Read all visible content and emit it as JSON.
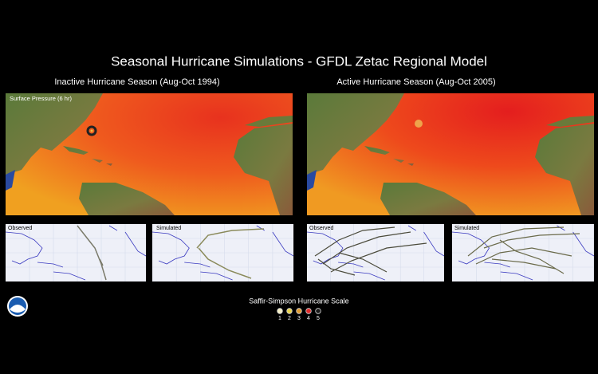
{
  "header": {
    "title": "Seasonal Hurricane Simulations - GFDL Zetac Regional Model"
  },
  "panels": [
    {
      "title": "Inactive Hurricane Season (Aug-Oct 1994)",
      "map_label": "Surface Pressure (6 hr)",
      "observed": "Observed",
      "simulated": "Simulated"
    },
    {
      "title": "Active Hurricane Season (Aug-Oct 2005)",
      "observed": "Observed",
      "simulated": "Simulated"
    }
  ],
  "scale": {
    "title": "Saffir-Simpson Hurricane Scale",
    "levels": [
      {
        "label": "1",
        "color": "#f4eec4"
      },
      {
        "label": "2",
        "color": "#e8d24a"
      },
      {
        "label": "3",
        "color": "#e09a30"
      },
      {
        "label": "4",
        "color": "#e02a2a"
      },
      {
        "label": "5",
        "color": "#1a1a1a"
      }
    ]
  }
}
